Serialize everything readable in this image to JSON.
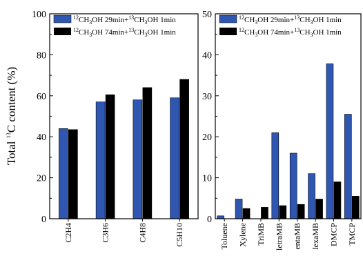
{
  "colors": {
    "series1": "#2f57b2",
    "series2": "#000000"
  },
  "ylabel": {
    "prefix": "Total ",
    "sup": "13",
    "suffix": "C content (%)"
  },
  "chart_data": [
    {
      "type": "bar",
      "categories": [
        "C2H4",
        "C3H6",
        "C4H8",
        "C5H10"
      ],
      "series": [
        {
          "name": "12CH3OH 29min+13CH3OH 1min",
          "values": [
            44,
            57,
            58,
            59
          ]
        },
        {
          "name": "12CH3OH 74min+13CH3OH 1min",
          "values": [
            43.5,
            60.5,
            64,
            68
          ]
        }
      ],
      "ylim": [
        0,
        100
      ],
      "yticks": [
        0,
        20,
        40,
        60,
        80,
        100
      ],
      "legend": "top-right"
    },
    {
      "type": "bar",
      "categories": [
        "Toluene",
        "Xylene",
        "TriMB",
        "TetraMB",
        "PentaMB",
        "HexaMB",
        "DMCP",
        "TMCP"
      ],
      "category_labels": [
        "Toluene",
        "Xylene",
        "TriMB",
        "letraMB",
        "entaMB",
        "lexaMB",
        "DMCP",
        "TMCP"
      ],
      "series": [
        {
          "name": "12CH3OH 29min+13CH3OH 1min",
          "values": [
            0.7,
            4.8,
            0,
            21,
            16,
            11,
            37.8,
            25.5
          ]
        },
        {
          "name": "12CH3OH 74min+13CH3OH 1min",
          "values": [
            0,
            2.5,
            2.8,
            3.2,
            3.5,
            4.8,
            9,
            5.5
          ]
        }
      ],
      "ylim": [
        0,
        50
      ],
      "yticks": [
        0,
        10,
        20,
        30,
        40,
        50
      ],
      "legend": "top-right"
    }
  ],
  "legend_text": {
    "series1": {
      "a": "12",
      "b": "CH",
      "c": "3",
      "d": "OH 29min+",
      "e": "13",
      "f": "CH",
      "g": "3",
      "h": "OH 1min"
    },
    "series2": {
      "a": "12",
      "b": "CH",
      "c": "3",
      "d": "OH 74min+",
      "e": "13",
      "f": "CH",
      "g": "3",
      "h": "OH 1min"
    }
  }
}
